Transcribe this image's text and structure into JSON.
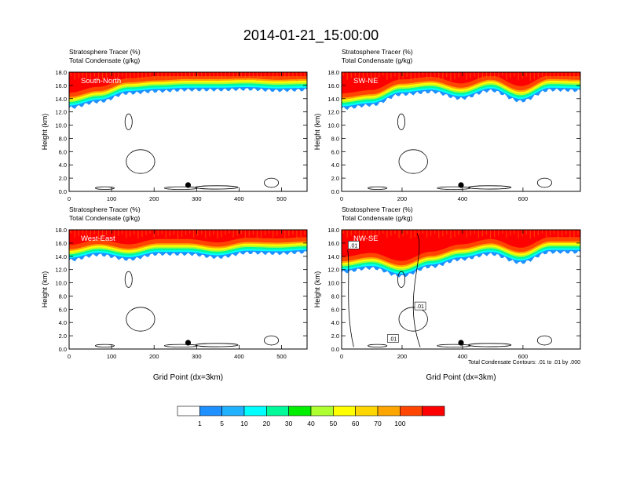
{
  "title": "2014-01-21_15:00:00",
  "colors": [
    "#ffffff",
    "#1e90ff",
    "#20b2ff",
    "#00ffff",
    "#00fa9a",
    "#00ee00",
    "#adff2f",
    "#ffff00",
    "#ffd700",
    "#ffa500",
    "#ff4500",
    "#ff0000"
  ],
  "colorbar_labels": [
    "1",
    "5",
    "10",
    "20",
    "30",
    "40",
    "50",
    "60",
    "70",
    "100"
  ],
  "chart_data": [
    {
      "type": "heatmap",
      "name": "South-North",
      "title_lines": [
        "Stratosphere Tracer   (%)",
        "Total Condensate   (g/kg)"
      ],
      "ylabel": "Height (km)",
      "xlabel": "",
      "xlim": [
        0,
        560
      ],
      "ylim": [
        0,
        18
      ],
      "xticks": [
        0,
        100,
        200,
        300,
        400,
        500
      ],
      "yticks": [
        "0.0",
        "2.0",
        "4.0",
        "6.0",
        "8.0",
        "10.0",
        "12.0",
        "14.0",
        "16.0",
        "18.0"
      ],
      "marker_x": 280,
      "tracer_base_km": [
        12.6,
        13.5,
        14.8,
        15.1,
        15.3,
        15.3,
        15.4,
        15.2,
        15.3
      ],
      "footnote": ""
    },
    {
      "type": "heatmap",
      "name": "SW-NE",
      "title_lines": [
        "Stratosphere Tracer   (%)",
        "Total Condensate   (g/kg)"
      ],
      "ylabel": "Height (km)",
      "xlabel": "",
      "xlim": [
        0,
        790
      ],
      "ylim": [
        0,
        18
      ],
      "xticks": [
        0,
        200,
        400,
        600
      ],
      "yticks": [
        "0.0",
        "2.0",
        "4.0",
        "6.0",
        "8.0",
        "10.0",
        "12.0",
        "14.0",
        "16.0",
        "18.0"
      ],
      "marker_x": 395,
      "tracer_base_km": [
        12.5,
        13.0,
        14.6,
        15.0,
        14.0,
        15.2,
        13.6,
        15.3,
        15.2
      ],
      "footnote": ""
    },
    {
      "type": "heatmap",
      "name": "West-East",
      "title_lines": [
        "Stratosphere Tracer   (%)",
        "Total Condensate   (g/kg)"
      ],
      "ylabel": "Height (km)",
      "xlabel": "Grid Point (dx=3km)",
      "xlim": [
        0,
        560
      ],
      "ylim": [
        0,
        18
      ],
      "xticks": [
        0,
        100,
        200,
        300,
        400,
        500
      ],
      "yticks": [
        "0.0",
        "2.0",
        "4.0",
        "6.0",
        "8.0",
        "10.0",
        "12.0",
        "14.0",
        "16.0",
        "18.0"
      ],
      "marker_x": 280,
      "tracer_base_km": [
        13.4,
        14.2,
        13.5,
        14.3,
        14.3,
        13.8,
        14.5,
        14.4,
        14.6
      ],
      "footnote": ""
    },
    {
      "type": "heatmap",
      "name": "NW-SE",
      "title_lines": [
        "Stratosphere Tracer   (%)",
        "Total Condensate   (g/kg)"
      ],
      "ylabel": "Height (km)",
      "xlabel": "Grid Point (dx=3km)",
      "xlim": [
        0,
        790
      ],
      "ylim": [
        0,
        18
      ],
      "xticks": [
        0,
        200,
        400,
        600
      ],
      "yticks": [
        "0.0",
        "2.0",
        "4.0",
        "6.0",
        "8.0",
        "10.0",
        "12.0",
        "14.0",
        "16.0",
        "18.0"
      ],
      "marker_x": 395,
      "tracer_base_km": [
        11.6,
        12.2,
        11.0,
        12.4,
        13.5,
        14.3,
        13.0,
        14.6,
        14.6
      ],
      "contour_labels": [
        ".01",
        ".01",
        ".01"
      ],
      "footnote": "Total Condensate Contours: .01 to .01 by .000"
    }
  ]
}
